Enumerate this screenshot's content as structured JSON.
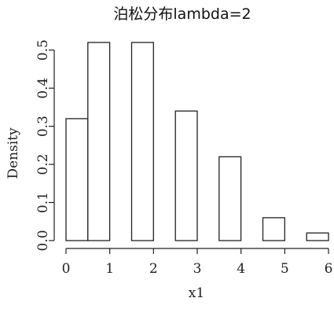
{
  "chart_data": {
    "type": "bar",
    "title": "泊松分布lambda=2",
    "xlabel": "x1",
    "ylabel": "Density",
    "xlim": [
      0,
      6
    ],
    "ylim": [
      0,
      0.52
    ],
    "x_ticks": [
      "0",
      "1",
      "2",
      "3",
      "4",
      "5",
      "6"
    ],
    "y_ticks": [
      "0.0",
      "0.1",
      "0.2",
      "0.3",
      "0.4",
      "0.5"
    ],
    "bins": [
      {
        "start": 0,
        "end": 0.5,
        "value": 0.32
      },
      {
        "start": 0.5,
        "end": 1.0,
        "value": 0.52
      },
      {
        "start": 1.0,
        "end": 1.5,
        "value": 0.0
      },
      {
        "start": 1.5,
        "end": 2.0,
        "value": 0.52
      },
      {
        "start": 2.0,
        "end": 2.5,
        "value": 0.0
      },
      {
        "start": 2.5,
        "end": 3.0,
        "value": 0.34
      },
      {
        "start": 3.0,
        "end": 3.5,
        "value": 0.0
      },
      {
        "start": 3.5,
        "end": 4.0,
        "value": 0.22
      },
      {
        "start": 4.0,
        "end": 4.5,
        "value": 0.0
      },
      {
        "start": 4.5,
        "end": 5.0,
        "value": 0.06
      },
      {
        "start": 5.0,
        "end": 5.5,
        "value": 0.0
      },
      {
        "start": 5.5,
        "end": 6.0,
        "value": 0.02
      }
    ],
    "grid": false,
    "bar_fill": "#ffffff",
    "bar_stroke": "#222222"
  }
}
